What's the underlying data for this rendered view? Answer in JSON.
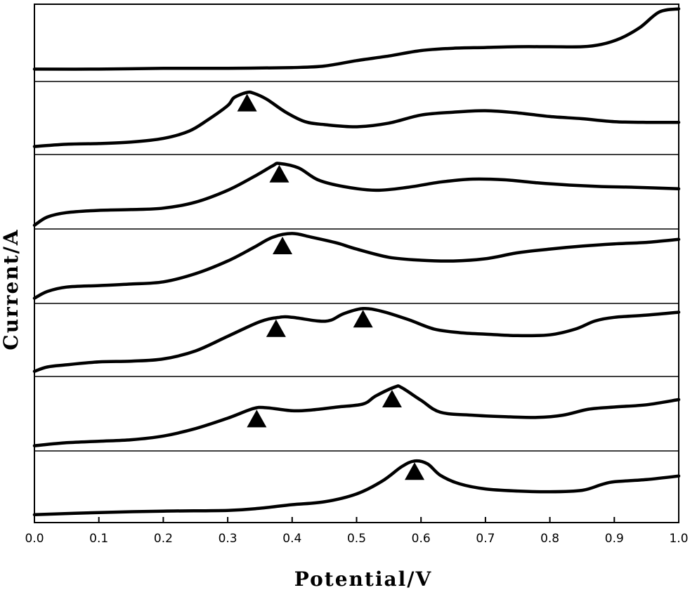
{
  "chart_data": {
    "type": "line",
    "title": "",
    "xlabel": "Potential/V",
    "ylabel": "Current/A",
    "xlim": [
      0.0,
      1.0
    ],
    "x_ticks": [
      "0.0",
      "0.1",
      "0.2",
      "0.3",
      "0.4",
      "0.5",
      "0.6",
      "0.7",
      "0.8",
      "0.9",
      "1.0"
    ],
    "y_ticks": [],
    "grid": false,
    "legend": "none",
    "layout": "stacked-panels",
    "panels": [
      {
        "points": [
          [
            0.0,
            0.84
          ],
          [
            0.1,
            0.84
          ],
          [
            0.2,
            0.83
          ],
          [
            0.3,
            0.83
          ],
          [
            0.4,
            0.82
          ],
          [
            0.45,
            0.8
          ],
          [
            0.5,
            0.73
          ],
          [
            0.55,
            0.67
          ],
          [
            0.6,
            0.6
          ],
          [
            0.65,
            0.57
          ],
          [
            0.7,
            0.56
          ],
          [
            0.75,
            0.55
          ],
          [
            0.8,
            0.55
          ],
          [
            0.85,
            0.55
          ],
          [
            0.88,
            0.52
          ],
          [
            0.91,
            0.44
          ],
          [
            0.94,
            0.3
          ],
          [
            0.97,
            0.1
          ],
          [
            1.0,
            0.06
          ]
        ],
        "peaks": []
      },
      {
        "points": [
          [
            0.0,
            0.89
          ],
          [
            0.05,
            0.86
          ],
          [
            0.1,
            0.85
          ],
          [
            0.15,
            0.83
          ],
          [
            0.2,
            0.78
          ],
          [
            0.24,
            0.68
          ],
          [
            0.27,
            0.52
          ],
          [
            0.3,
            0.33
          ],
          [
            0.31,
            0.22
          ],
          [
            0.33,
            0.15
          ],
          [
            0.34,
            0.16
          ],
          [
            0.36,
            0.24
          ],
          [
            0.39,
            0.42
          ],
          [
            0.42,
            0.55
          ],
          [
            0.45,
            0.59
          ],
          [
            0.5,
            0.62
          ],
          [
            0.55,
            0.57
          ],
          [
            0.6,
            0.46
          ],
          [
            0.65,
            0.42
          ],
          [
            0.7,
            0.4
          ],
          [
            0.75,
            0.43
          ],
          [
            0.8,
            0.48
          ],
          [
            0.85,
            0.51
          ],
          [
            0.9,
            0.55
          ],
          [
            0.95,
            0.56
          ],
          [
            1.0,
            0.56
          ]
        ],
        "peaks": [
          0.33
        ]
      },
      {
        "points": [
          [
            0.0,
            0.95
          ],
          [
            0.02,
            0.84
          ],
          [
            0.05,
            0.78
          ],
          [
            0.1,
            0.75
          ],
          [
            0.15,
            0.74
          ],
          [
            0.2,
            0.72
          ],
          [
            0.25,
            0.64
          ],
          [
            0.3,
            0.48
          ],
          [
            0.34,
            0.3
          ],
          [
            0.37,
            0.15
          ],
          [
            0.38,
            0.12
          ],
          [
            0.41,
            0.18
          ],
          [
            0.44,
            0.34
          ],
          [
            0.48,
            0.43
          ],
          [
            0.53,
            0.48
          ],
          [
            0.58,
            0.44
          ],
          [
            0.63,
            0.37
          ],
          [
            0.68,
            0.33
          ],
          [
            0.73,
            0.34
          ],
          [
            0.78,
            0.38
          ],
          [
            0.83,
            0.41
          ],
          [
            0.88,
            0.43
          ],
          [
            0.93,
            0.44
          ],
          [
            1.0,
            0.46
          ]
        ],
        "peaks": [
          0.38
        ]
      },
      {
        "points": [
          [
            0.0,
            0.93
          ],
          [
            0.02,
            0.84
          ],
          [
            0.05,
            0.78
          ],
          [
            0.1,
            0.76
          ],
          [
            0.15,
            0.74
          ],
          [
            0.2,
            0.71
          ],
          [
            0.25,
            0.6
          ],
          [
            0.3,
            0.43
          ],
          [
            0.34,
            0.25
          ],
          [
            0.37,
            0.11
          ],
          [
            0.4,
            0.06
          ],
          [
            0.43,
            0.11
          ],
          [
            0.47,
            0.19
          ],
          [
            0.5,
            0.27
          ],
          [
            0.55,
            0.38
          ],
          [
            0.6,
            0.42
          ],
          [
            0.65,
            0.43
          ],
          [
            0.7,
            0.4
          ],
          [
            0.75,
            0.32
          ],
          [
            0.8,
            0.27
          ],
          [
            0.85,
            0.23
          ],
          [
            0.9,
            0.2
          ],
          [
            0.95,
            0.18
          ],
          [
            1.0,
            0.14
          ]
        ],
        "peaks": [
          0.385
        ]
      },
      {
        "points": [
          [
            0.0,
            0.93
          ],
          [
            0.02,
            0.87
          ],
          [
            0.05,
            0.84
          ],
          [
            0.1,
            0.8
          ],
          [
            0.15,
            0.79
          ],
          [
            0.2,
            0.76
          ],
          [
            0.25,
            0.65
          ],
          [
            0.3,
            0.45
          ],
          [
            0.35,
            0.25
          ],
          [
            0.38,
            0.19
          ],
          [
            0.4,
            0.19
          ],
          [
            0.44,
            0.24
          ],
          [
            0.46,
            0.23
          ],
          [
            0.48,
            0.14
          ],
          [
            0.51,
            0.07
          ],
          [
            0.54,
            0.11
          ],
          [
            0.58,
            0.22
          ],
          [
            0.62,
            0.35
          ],
          [
            0.66,
            0.4
          ],
          [
            0.7,
            0.42
          ],
          [
            0.75,
            0.44
          ],
          [
            0.8,
            0.43
          ],
          [
            0.84,
            0.35
          ],
          [
            0.87,
            0.24
          ],
          [
            0.9,
            0.19
          ],
          [
            0.95,
            0.16
          ],
          [
            1.0,
            0.12
          ]
        ],
        "peaks": [
          0.375,
          0.51
        ]
      },
      {
        "points": [
          [
            0.0,
            0.93
          ],
          [
            0.05,
            0.89
          ],
          [
            0.1,
            0.87
          ],
          [
            0.15,
            0.85
          ],
          [
            0.2,
            0.8
          ],
          [
            0.25,
            0.7
          ],
          [
            0.3,
            0.56
          ],
          [
            0.34,
            0.43
          ],
          [
            0.36,
            0.42
          ],
          [
            0.4,
            0.46
          ],
          [
            0.43,
            0.45
          ],
          [
            0.47,
            0.41
          ],
          [
            0.51,
            0.37
          ],
          [
            0.53,
            0.26
          ],
          [
            0.56,
            0.14
          ],
          [
            0.57,
            0.15
          ],
          [
            0.6,
            0.32
          ],
          [
            0.63,
            0.48
          ],
          [
            0.68,
            0.52
          ],
          [
            0.73,
            0.54
          ],
          [
            0.78,
            0.55
          ],
          [
            0.82,
            0.52
          ],
          [
            0.86,
            0.44
          ],
          [
            0.9,
            0.41
          ],
          [
            0.95,
            0.38
          ],
          [
            1.0,
            0.31
          ]
        ],
        "peaks": [
          0.345,
          0.555
        ]
      },
      {
        "points": [
          [
            0.0,
            0.89
          ],
          [
            0.1,
            0.86
          ],
          [
            0.2,
            0.84
          ],
          [
            0.3,
            0.83
          ],
          [
            0.35,
            0.8
          ],
          [
            0.4,
            0.75
          ],
          [
            0.45,
            0.71
          ],
          [
            0.5,
            0.6
          ],
          [
            0.54,
            0.42
          ],
          [
            0.57,
            0.22
          ],
          [
            0.59,
            0.14
          ],
          [
            0.61,
            0.18
          ],
          [
            0.63,
            0.34
          ],
          [
            0.66,
            0.46
          ],
          [
            0.7,
            0.53
          ],
          [
            0.75,
            0.56
          ],
          [
            0.8,
            0.57
          ],
          [
            0.85,
            0.55
          ],
          [
            0.88,
            0.47
          ],
          [
            0.9,
            0.43
          ],
          [
            0.95,
            0.4
          ],
          [
            1.0,
            0.35
          ]
        ],
        "peaks": [
          0.59
        ]
      }
    ]
  }
}
